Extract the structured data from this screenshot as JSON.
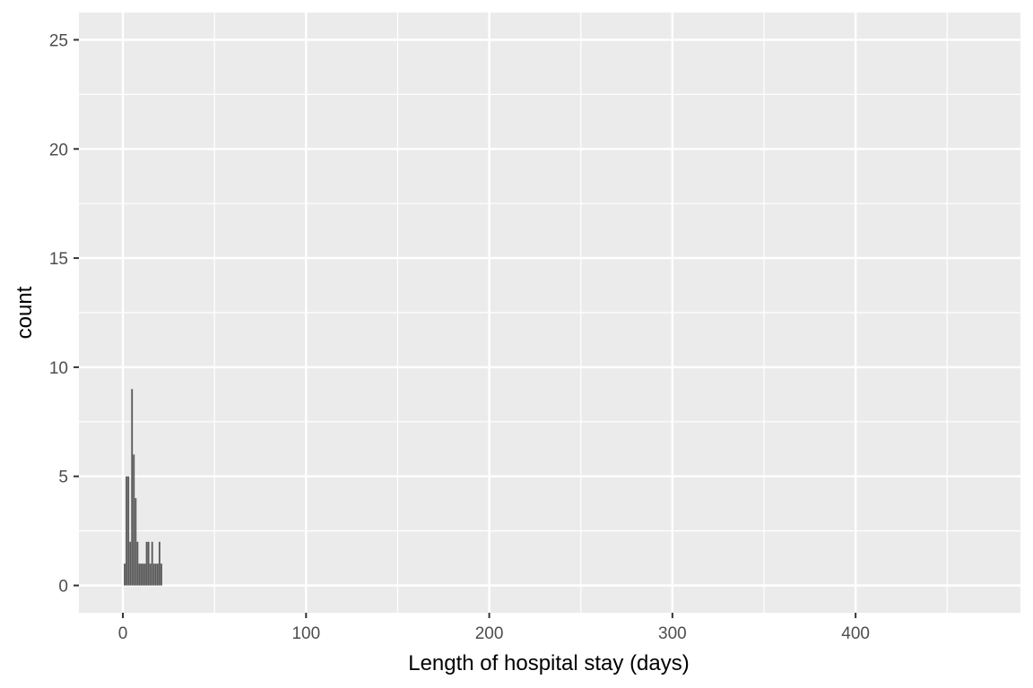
{
  "chart_data": {
    "type": "bar",
    "title": "",
    "xlabel": "Length of hospital stay (days)",
    "ylabel": "count",
    "xlim": [
      -24,
      490
    ],
    "ylim": [
      -1.25,
      26.25
    ],
    "x_ticks": [
      0,
      100,
      200,
      300,
      400
    ],
    "x_tick_labels": [
      "0",
      "100",
      "200",
      "300",
      "400"
    ],
    "x_minor": [
      50,
      150,
      250,
      350,
      450
    ],
    "y_ticks": [
      0,
      5,
      10,
      15,
      20,
      25
    ],
    "y_tick_labels": [
      "0",
      "5",
      "10",
      "15",
      "20",
      "25"
    ],
    "y_minor": [
      2.5,
      7.5,
      12.5,
      17.5,
      22.5
    ],
    "grid": true,
    "bar_width": 0.9,
    "bar_color": "#595959",
    "panel_color": "#ebebeb",
    "grid_color": "#ffffff",
    "x": [
      1,
      2,
      3,
      4,
      5,
      6,
      7,
      8,
      9,
      10,
      11,
      12,
      13,
      14,
      15,
      16,
      17,
      18,
      19,
      20,
      21
    ],
    "values": [
      1,
      5,
      5,
      2,
      9,
      6,
      4,
      2,
      1,
      1,
      1,
      1,
      2,
      2,
      1,
      2,
      1,
      1,
      1,
      2,
      1
    ]
  }
}
